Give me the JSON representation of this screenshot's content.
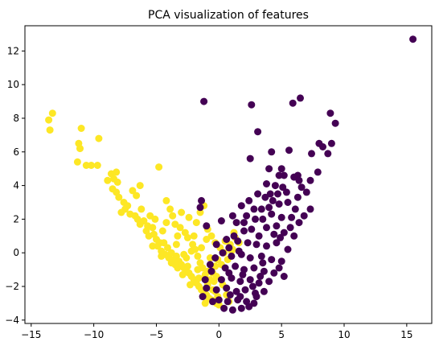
{
  "chart_data": {
    "type": "scatter",
    "title": "PCA visualization of features",
    "xlabel": "",
    "ylabel": "",
    "xlim": [
      -15.5,
      17
    ],
    "ylim": [
      -4.2,
      13.5
    ],
    "xticks": [
      -15,
      -10,
      -5,
      0,
      5,
      10,
      15
    ],
    "yticks": [
      -4,
      -2,
      0,
      2,
      4,
      6,
      8,
      10,
      12
    ],
    "grid": false,
    "legend": "none",
    "series": [
      {
        "color": "#fde725",
        "points": [
          [
            -13.6,
            7.9
          ],
          [
            -13.3,
            8.3
          ],
          [
            -13.5,
            7.3
          ],
          [
            -11.0,
            7.4
          ],
          [
            -11.2,
            6.5
          ],
          [
            -11.1,
            6.2
          ],
          [
            -11.3,
            5.4
          ],
          [
            -10.6,
            5.2
          ],
          [
            -10.2,
            5.2
          ],
          [
            -9.6,
            6.8
          ],
          [
            -9.7,
            5.2
          ],
          [
            -8.6,
            4.7
          ],
          [
            -8.2,
            4.8
          ],
          [
            -8.4,
            4.4
          ],
          [
            -8.9,
            4.3
          ],
          [
            -8.1,
            4.2
          ],
          [
            -8.5,
            3.8
          ],
          [
            -8.2,
            3.6
          ],
          [
            -8.0,
            3.3
          ],
          [
            -7.6,
            3.0
          ],
          [
            -7.3,
            2.8
          ],
          [
            -7.5,
            2.6
          ],
          [
            -7.8,
            2.4
          ],
          [
            -7.1,
            2.3
          ],
          [
            -6.7,
            2.2
          ],
          [
            -6.9,
            3.7
          ],
          [
            -6.6,
            3.4
          ],
          [
            -6.3,
            4.0
          ],
          [
            -6.5,
            2.0
          ],
          [
            -6.0,
            1.9
          ],
          [
            -6.3,
            1.7
          ],
          [
            -5.7,
            1.6
          ],
          [
            -5.3,
            1.5
          ],
          [
            -5.8,
            1.3
          ],
          [
            -5.6,
            1.0
          ],
          [
            -5.2,
            1.1
          ],
          [
            -5.0,
            0.8
          ],
          [
            -4.7,
            0.6
          ],
          [
            -4.9,
            0.4
          ],
          [
            -4.4,
            0.6
          ],
          [
            -4.1,
            0.3
          ],
          [
            -4.6,
            0.1
          ],
          [
            -4.3,
            -0.1
          ],
          [
            -4.0,
            -0.3
          ],
          [
            -3.8,
            0.0
          ],
          [
            -3.6,
            -0.4
          ],
          [
            -3.4,
            -0.2
          ],
          [
            -3.2,
            -0.5
          ],
          [
            -3.0,
            -0.7
          ],
          [
            -3.3,
            -0.9
          ],
          [
            -2.8,
            -0.9
          ],
          [
            -2.6,
            -1.1
          ],
          [
            -2.9,
            -1.3
          ],
          [
            -2.4,
            -1.2
          ],
          [
            -2.2,
            -1.4
          ],
          [
            -2.0,
            -1.6
          ],
          [
            -1.8,
            -1.8
          ],
          [
            -2.3,
            -1.9
          ],
          [
            -1.6,
            -2.0
          ],
          [
            -1.4,
            -2.2
          ],
          [
            -1.2,
            -2.4
          ],
          [
            -1.0,
            -2.5
          ],
          [
            -0.8,
            -2.7
          ],
          [
            -0.6,
            -2.8
          ],
          [
            -0.4,
            -2.9
          ],
          [
            -0.2,
            -3.0
          ],
          [
            0.0,
            -3.1
          ],
          [
            -0.9,
            -1.9
          ],
          [
            -0.7,
            -1.6
          ],
          [
            -0.5,
            -1.2
          ],
          [
            -0.3,
            -0.8
          ],
          [
            -0.1,
            -0.4
          ],
          [
            -1.1,
            -1.3
          ],
          [
            -1.3,
            -0.9
          ],
          [
            -1.5,
            -0.6
          ],
          [
            -1.7,
            -0.2
          ],
          [
            -1.9,
            0.2
          ],
          [
            -2.1,
            0.5
          ],
          [
            -2.5,
            0.9
          ],
          [
            -2.7,
            1.2
          ],
          [
            -3.1,
            1.5
          ],
          [
            -3.5,
            1.7
          ],
          [
            -3.7,
            2.2
          ],
          [
            -3.9,
            2.6
          ],
          [
            -4.2,
            3.1
          ],
          [
            -4.8,
            5.1
          ],
          [
            -3.0,
            2.4
          ],
          [
            -2.4,
            2.1
          ],
          [
            -1.8,
            1.8
          ],
          [
            -1.5,
            2.4
          ],
          [
            -1.2,
            2.8
          ],
          [
            -0.9,
            1.4
          ],
          [
            -0.6,
            1.0
          ],
          [
            -0.3,
            0.6
          ],
          [
            0.1,
            0.3
          ],
          [
            0.4,
            0.0
          ],
          [
            0.7,
            -0.4
          ],
          [
            0.5,
            0.7
          ],
          [
            0.9,
            0.5
          ],
          [
            1.1,
            0.2
          ],
          [
            1.3,
            0.9
          ],
          [
            1.6,
            0.6
          ],
          [
            1.2,
            1.2
          ],
          [
            1.0,
            0.1
          ],
          [
            0.2,
            -0.7
          ],
          [
            -0.2,
            -1.4
          ],
          [
            0.3,
            -1.9
          ],
          [
            -0.5,
            -2.2
          ],
          [
            -1.6,
            -1.5
          ],
          [
            -2.6,
            -0.3
          ],
          [
            -3.4,
            0.5
          ],
          [
            -4.5,
            1.3
          ],
          [
            -5.5,
            2.2
          ],
          [
            -6.2,
            2.6
          ],
          [
            -5.1,
            2.0
          ],
          [
            -4.2,
            1.8
          ],
          [
            -3.3,
            1.0
          ],
          [
            -2.2,
            0.1
          ],
          [
            -1.4,
            0.3
          ],
          [
            -0.7,
            -0.3
          ],
          [
            -1.0,
            0.8
          ],
          [
            -2.0,
            1.0
          ],
          [
            -2.8,
            -0.1
          ],
          [
            -3.8,
            -0.6
          ],
          [
            -1.7,
            -1.0
          ],
          [
            -0.9,
            -1.1
          ],
          [
            -0.4,
            -1.7
          ],
          [
            0.6,
            -2.5
          ],
          [
            0.8,
            -2.9
          ],
          [
            -0.1,
            -2.6
          ],
          [
            -1.1,
            -3.0
          ],
          [
            -0.3,
            -2.3
          ],
          [
            -2.5,
            -0.8
          ],
          [
            -3.5,
            -0.7
          ],
          [
            -4.6,
            -0.2
          ],
          [
            -5.3,
            0.4
          ]
        ]
      },
      {
        "color": "#440154",
        "points": [
          [
            15.5,
            12.7
          ],
          [
            -1.2,
            9.0
          ],
          [
            2.6,
            8.8
          ],
          [
            5.9,
            8.9
          ],
          [
            6.5,
            9.2
          ],
          [
            3.1,
            7.2
          ],
          [
            8.9,
            8.3
          ],
          [
            9.3,
            7.7
          ],
          [
            2.5,
            5.6
          ],
          [
            4.2,
            6.0
          ],
          [
            5.6,
            6.1
          ],
          [
            7.4,
            5.9
          ],
          [
            8.0,
            6.5
          ],
          [
            8.3,
            6.3
          ],
          [
            9.0,
            6.5
          ],
          [
            8.7,
            5.9
          ],
          [
            4.0,
            5.0
          ],
          [
            5.0,
            5.0
          ],
          [
            6.3,
            4.6
          ],
          [
            6.0,
            4.5
          ],
          [
            7.9,
            4.8
          ],
          [
            6.4,
            4.3
          ],
          [
            7.3,
            4.3
          ],
          [
            5.2,
            4.6
          ],
          [
            4.8,
            4.6
          ],
          [
            3.8,
            4.1
          ],
          [
            4.5,
            4.0
          ],
          [
            5.1,
            3.9
          ],
          [
            4.1,
            3.5
          ],
          [
            4.7,
            3.5
          ],
          [
            5.4,
            3.6
          ],
          [
            6.6,
            3.9
          ],
          [
            7.0,
            3.6
          ],
          [
            6.3,
            3.3
          ],
          [
            3.7,
            3.3
          ],
          [
            4.3,
            3.1
          ],
          [
            2.8,
            2.6
          ],
          [
            3.4,
            2.6
          ],
          [
            4.0,
            2.7
          ],
          [
            4.8,
            2.9
          ],
          [
            5.5,
            3.0
          ],
          [
            6.1,
            2.6
          ],
          [
            7.3,
            2.6
          ],
          [
            2.2,
            2.2
          ],
          [
            2.9,
            2.0
          ],
          [
            3.5,
            2.0
          ],
          [
            4.2,
            2.3
          ],
          [
            5.0,
            2.1
          ],
          [
            5.8,
            2.1
          ],
          [
            6.4,
            1.8
          ],
          [
            3.8,
            1.5
          ],
          [
            4.6,
            1.6
          ],
          [
            2.0,
            1.3
          ],
          [
            2.6,
            1.4
          ],
          [
            3.2,
            1.0
          ],
          [
            4.4,
            1.1
          ],
          [
            5.2,
            1.2
          ],
          [
            6.0,
            1.0
          ],
          [
            1.5,
            0.7
          ],
          [
            2.3,
            0.6
          ],
          [
            3.0,
            0.5
          ],
          [
            3.8,
            0.4
          ],
          [
            4.6,
            0.6
          ],
          [
            5.5,
            0.2
          ],
          [
            1.0,
            -0.2
          ],
          [
            1.8,
            -0.1
          ],
          [
            2.5,
            -0.3
          ],
          [
            3.4,
            -0.2
          ],
          [
            4.2,
            -0.4
          ],
          [
            5.0,
            -0.5
          ],
          [
            0.5,
            -0.9
          ],
          [
            1.3,
            -0.8
          ],
          [
            2.0,
            -1.0
          ],
          [
            2.8,
            -0.9
          ],
          [
            3.6,
            -1.1
          ],
          [
            4.4,
            -1.2
          ],
          [
            0.2,
            -1.6
          ],
          [
            1.0,
            -1.5
          ],
          [
            1.7,
            -1.7
          ],
          [
            2.5,
            -1.6
          ],
          [
            3.2,
            -1.8
          ],
          [
            4.0,
            -1.7
          ],
          [
            -0.2,
            -2.2
          ],
          [
            0.6,
            -2.1
          ],
          [
            1.4,
            -2.3
          ],
          [
            2.1,
            -2.2
          ],
          [
            2.9,
            -2.4
          ],
          [
            3.6,
            -2.3
          ],
          [
            0.0,
            -2.8
          ],
          [
            0.7,
            -2.9
          ],
          [
            1.5,
            -2.8
          ],
          [
            2.2,
            -2.9
          ],
          [
            2.8,
            -3.0
          ],
          [
            0.4,
            -3.3
          ],
          [
            1.1,
            -3.4
          ],
          [
            1.8,
            -3.3
          ],
          [
            2.4,
            -3.2
          ],
          [
            -1.4,
            3.1
          ],
          [
            -1.5,
            2.7
          ],
          [
            -1.0,
            1.6
          ],
          [
            0.2,
            1.9
          ],
          [
            1.1,
            2.2
          ],
          [
            1.4,
            1.8
          ],
          [
            1.8,
            2.8
          ],
          [
            2.4,
            3.1
          ],
          [
            3.1,
            3.5
          ],
          [
            0.8,
            0.3
          ],
          [
            1.6,
            0.1
          ],
          [
            0.3,
            0.0
          ],
          [
            -0.3,
            -0.3
          ],
          [
            0.8,
            -1.2
          ],
          [
            1.9,
            -1.3
          ],
          [
            2.7,
            -2.0
          ],
          [
            3.3,
            -1.4
          ],
          [
            -0.6,
            -1.1
          ],
          [
            -1.0,
            -2.1
          ],
          [
            -1.3,
            -2.6
          ],
          [
            -0.5,
            -2.9
          ],
          [
            0.9,
            -2.5
          ],
          [
            1.7,
            -2.6
          ],
          [
            3.0,
            -2.6
          ],
          [
            3.5,
            -0.6
          ],
          [
            4.8,
            -0.9
          ],
          [
            5.2,
            -1.4
          ],
          [
            4.9,
            0.9
          ],
          [
            5.7,
            1.5
          ],
          [
            6.8,
            2.2
          ],
          [
            2.0,
            1.8
          ],
          [
            1.2,
            1.0
          ],
          [
            0.6,
            0.8
          ],
          [
            -0.2,
            0.5
          ],
          [
            -0.7,
            -0.7
          ],
          [
            -1.1,
            -1.6
          ]
        ]
      }
    ]
  }
}
